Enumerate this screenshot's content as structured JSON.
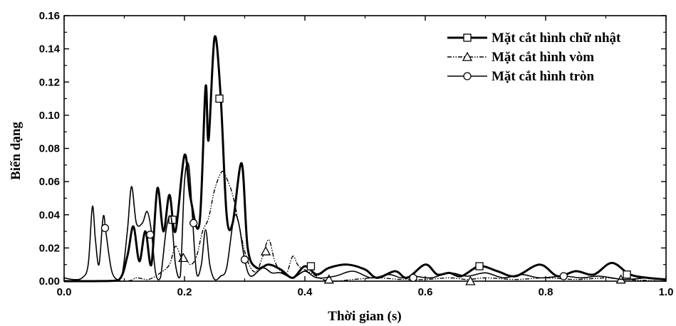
{
  "chart_data": {
    "type": "line",
    "title": "",
    "xlabel": "Thời gian (s)",
    "ylabel": "Biến dạng",
    "xlim": [
      0.0,
      1.0
    ],
    "ylim": [
      0.0,
      0.16
    ],
    "xticks": [
      "0.0",
      "0.2",
      "0.4",
      "0.6",
      "0.8",
      "1.0"
    ],
    "yticks": [
      "0.00",
      "0.02",
      "0.04",
      "0.06",
      "0.08",
      "0.10",
      "0.12",
      "0.14",
      "0.16"
    ],
    "grid": false,
    "legend_position": "top-right",
    "series": [
      {
        "name": "Mặt cắt hình chữ nhật",
        "style": "solid-thick",
        "marker": "square",
        "color": "#000000",
        "points": [
          [
            0.0,
            0.0
          ],
          [
            0.05,
            0.0
          ],
          [
            0.09,
            0.0005
          ],
          [
            0.105,
            0.015
          ],
          [
            0.115,
            0.033
          ],
          [
            0.125,
            0.012
          ],
          [
            0.135,
            0.03
          ],
          [
            0.145,
            0.01
          ],
          [
            0.155,
            0.056
          ],
          [
            0.165,
            0.03
          ],
          [
            0.175,
            0.052
          ],
          [
            0.185,
            0.03
          ],
          [
            0.2,
            0.076
          ],
          [
            0.21,
            0.05
          ],
          [
            0.225,
            0.035
          ],
          [
            0.235,
            0.117
          ],
          [
            0.24,
            0.085
          ],
          [
            0.25,
            0.147
          ],
          [
            0.26,
            0.112
          ],
          [
            0.27,
            0.04
          ],
          [
            0.28,
            0.035
          ],
          [
            0.295,
            0.071
          ],
          [
            0.305,
            0.02
          ],
          [
            0.32,
            0.008
          ],
          [
            0.34,
            0.01
          ],
          [
            0.36,
            0.007
          ],
          [
            0.38,
            0.002
          ],
          [
            0.4,
            0.009
          ],
          [
            0.42,
            0.004
          ],
          [
            0.44,
            0.008
          ],
          [
            0.47,
            0.01
          ],
          [
            0.5,
            0.007
          ],
          [
            0.52,
            0.002
          ],
          [
            0.55,
            0.006
          ],
          [
            0.57,
            0.002
          ],
          [
            0.6,
            0.01
          ],
          [
            0.62,
            0.004
          ],
          [
            0.64,
            0.005
          ],
          [
            0.66,
            0.003
          ],
          [
            0.69,
            0.009
          ],
          [
            0.72,
            0.006
          ],
          [
            0.75,
            0.003
          ],
          [
            0.79,
            0.01
          ],
          [
            0.82,
            0.003
          ],
          [
            0.85,
            0.006
          ],
          [
            0.88,
            0.004
          ],
          [
            0.91,
            0.011
          ],
          [
            0.94,
            0.004
          ],
          [
            0.97,
            0.002
          ],
          [
            1.0,
            0.001
          ]
        ],
        "marker_points": [
          [
            0.18,
            0.037
          ],
          [
            0.258,
            0.11
          ],
          [
            0.41,
            0.009
          ],
          [
            0.69,
            0.009
          ],
          [
            0.935,
            0.004
          ]
        ]
      },
      {
        "name": "Mặt cắt hình vòm",
        "style": "dash-dot-dot",
        "marker": "triangle",
        "color": "#000000",
        "points": [
          [
            0.0,
            0.0
          ],
          [
            0.1,
            0.0
          ],
          [
            0.12,
            0.002
          ],
          [
            0.14,
            0.001
          ],
          [
            0.16,
            0.005
          ],
          [
            0.175,
            0.01
          ],
          [
            0.185,
            0.021
          ],
          [
            0.195,
            0.014
          ],
          [
            0.2,
            0.015
          ],
          [
            0.21,
            0.01
          ],
          [
            0.22,
            0.015
          ],
          [
            0.23,
            0.03
          ],
          [
            0.24,
            0.038
          ],
          [
            0.25,
            0.055
          ],
          [
            0.262,
            0.066
          ],
          [
            0.27,
            0.062
          ],
          [
            0.28,
            0.052
          ],
          [
            0.29,
            0.035
          ],
          [
            0.3,
            0.018
          ],
          [
            0.31,
            0.008
          ],
          [
            0.32,
            0.006
          ],
          [
            0.33,
            0.015
          ],
          [
            0.34,
            0.025
          ],
          [
            0.35,
            0.012
          ],
          [
            0.36,
            0.006
          ],
          [
            0.37,
            0.005
          ],
          [
            0.38,
            0.015
          ],
          [
            0.39,
            0.009
          ],
          [
            0.41,
            0.005
          ],
          [
            0.43,
            0.001
          ],
          [
            0.45,
            0.0
          ],
          [
            0.48,
            0.001
          ],
          [
            0.52,
            0.002
          ],
          [
            0.56,
            0.001
          ],
          [
            0.6,
            0.001
          ],
          [
            0.64,
            0.002
          ],
          [
            0.67,
            0.001
          ],
          [
            0.7,
            0.002
          ],
          [
            0.75,
            0.001
          ],
          [
            0.8,
            0.002
          ],
          [
            0.85,
            0.001
          ],
          [
            0.9,
            0.002
          ],
          [
            0.93,
            0.001
          ],
          [
            1.0,
            0.0
          ]
        ],
        "marker_points": [
          [
            0.198,
            0.014
          ],
          [
            0.335,
            0.018
          ],
          [
            0.44,
            0.001
          ],
          [
            0.675,
            0.0
          ],
          [
            0.925,
            0.001
          ]
        ]
      },
      {
        "name": "Mặt cắt hình tròn",
        "style": "solid-thin",
        "marker": "circle",
        "color": "#000000",
        "points": [
          [
            0.0,
            0.002
          ],
          [
            0.015,
            0.001
          ],
          [
            0.03,
            0.002
          ],
          [
            0.04,
            0.01
          ],
          [
            0.047,
            0.045
          ],
          [
            0.052,
            0.025
          ],
          [
            0.058,
            0.01
          ],
          [
            0.065,
            0.039
          ],
          [
            0.07,
            0.028
          ],
          [
            0.08,
            0.005
          ],
          [
            0.095,
            0.002
          ],
          [
            0.105,
            0.03
          ],
          [
            0.112,
            0.057
          ],
          [
            0.12,
            0.035
          ],
          [
            0.13,
            0.035
          ],
          [
            0.138,
            0.042
          ],
          [
            0.145,
            0.03
          ],
          [
            0.152,
            0.005
          ],
          [
            0.16,
            0.002
          ],
          [
            0.17,
            0.032
          ],
          [
            0.178,
            0.038
          ],
          [
            0.185,
            0.01
          ],
          [
            0.193,
            0.003
          ],
          [
            0.2,
            0.06
          ],
          [
            0.207,
            0.07
          ],
          [
            0.213,
            0.04
          ],
          [
            0.22,
            0.005
          ],
          [
            0.228,
            0.01
          ],
          [
            0.235,
            0.031
          ],
          [
            0.242,
            0.01
          ],
          [
            0.25,
            0.001
          ],
          [
            0.26,
            0.003
          ],
          [
            0.27,
            0.008
          ],
          [
            0.282,
            0.038
          ],
          [
            0.29,
            0.035
          ],
          [
            0.3,
            0.013
          ],
          [
            0.31,
            0.003
          ],
          [
            0.33,
            0.008
          ],
          [
            0.345,
            0.005
          ],
          [
            0.36,
            0.005
          ],
          [
            0.38,
            0.002
          ],
          [
            0.4,
            0.006
          ],
          [
            0.42,
            0.002
          ],
          [
            0.45,
            0.003
          ],
          [
            0.48,
            0.006
          ],
          [
            0.51,
            0.002
          ],
          [
            0.54,
            0.004
          ],
          [
            0.56,
            0.002
          ],
          [
            0.58,
            0.003
          ],
          [
            0.61,
            0.002
          ],
          [
            0.64,
            0.005
          ],
          [
            0.67,
            0.003
          ],
          [
            0.7,
            0.005
          ],
          [
            0.73,
            0.002
          ],
          [
            0.76,
            0.004
          ],
          [
            0.79,
            0.002
          ],
          [
            0.83,
            0.003
          ],
          [
            0.86,
            0.002
          ],
          [
            0.89,
            0.003
          ],
          [
            0.93,
            0.001
          ],
          [
            0.97,
            0.002
          ],
          [
            1.0,
            0.001
          ]
        ],
        "marker_points": [
          [
            0.068,
            0.032
          ],
          [
            0.143,
            0.028
          ],
          [
            0.215,
            0.035
          ],
          [
            0.3,
            0.013
          ],
          [
            0.58,
            0.002
          ],
          [
            0.83,
            0.003
          ]
        ]
      }
    ]
  }
}
